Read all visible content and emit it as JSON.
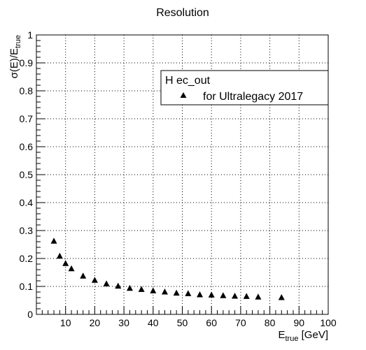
{
  "chart_data": {
    "type": "scatter",
    "title": "Resolution",
    "xlabel": {
      "main": "E",
      "sub": "true",
      "unit": " [GeV]"
    },
    "ylabel": {
      "pre": "σ(E)/E",
      "sub": "true"
    },
    "xlim": [
      0,
      100
    ],
    "ylim": [
      0,
      1
    ],
    "x_ticks": [
      10,
      20,
      30,
      40,
      50,
      60,
      70,
      80,
      90,
      100
    ],
    "y_ticks": [
      0,
      0.1,
      0.2,
      0.3,
      0.4,
      0.5,
      0.6,
      0.7,
      0.8,
      0.9,
      1
    ],
    "grid": true,
    "legend": {
      "position": "top-right",
      "header": "H ec_out",
      "entries": [
        "for Ultralegacy 2017"
      ]
    },
    "series": [
      {
        "name": "for Ultralegacy 2017",
        "marker": "triangle",
        "color": "#000000",
        "points": [
          {
            "x": 6,
            "y": 0.262
          },
          {
            "x": 8,
            "y": 0.208
          },
          {
            "x": 10,
            "y": 0.182
          },
          {
            "x": 12,
            "y": 0.163
          },
          {
            "x": 16,
            "y": 0.137
          },
          {
            "x": 20,
            "y": 0.122
          },
          {
            "x": 24,
            "y": 0.109
          },
          {
            "x": 28,
            "y": 0.101
          },
          {
            "x": 32,
            "y": 0.093
          },
          {
            "x": 36,
            "y": 0.089
          },
          {
            "x": 40,
            "y": 0.084
          },
          {
            "x": 44,
            "y": 0.08
          },
          {
            "x": 48,
            "y": 0.076
          },
          {
            "x": 52,
            "y": 0.074
          },
          {
            "x": 56,
            "y": 0.07
          },
          {
            "x": 60,
            "y": 0.069
          },
          {
            "x": 64,
            "y": 0.067
          },
          {
            "x": 68,
            "y": 0.065
          },
          {
            "x": 72,
            "y": 0.064
          },
          {
            "x": 76,
            "y": 0.062
          },
          {
            "x": 84,
            "y": 0.06
          }
        ]
      }
    ]
  }
}
